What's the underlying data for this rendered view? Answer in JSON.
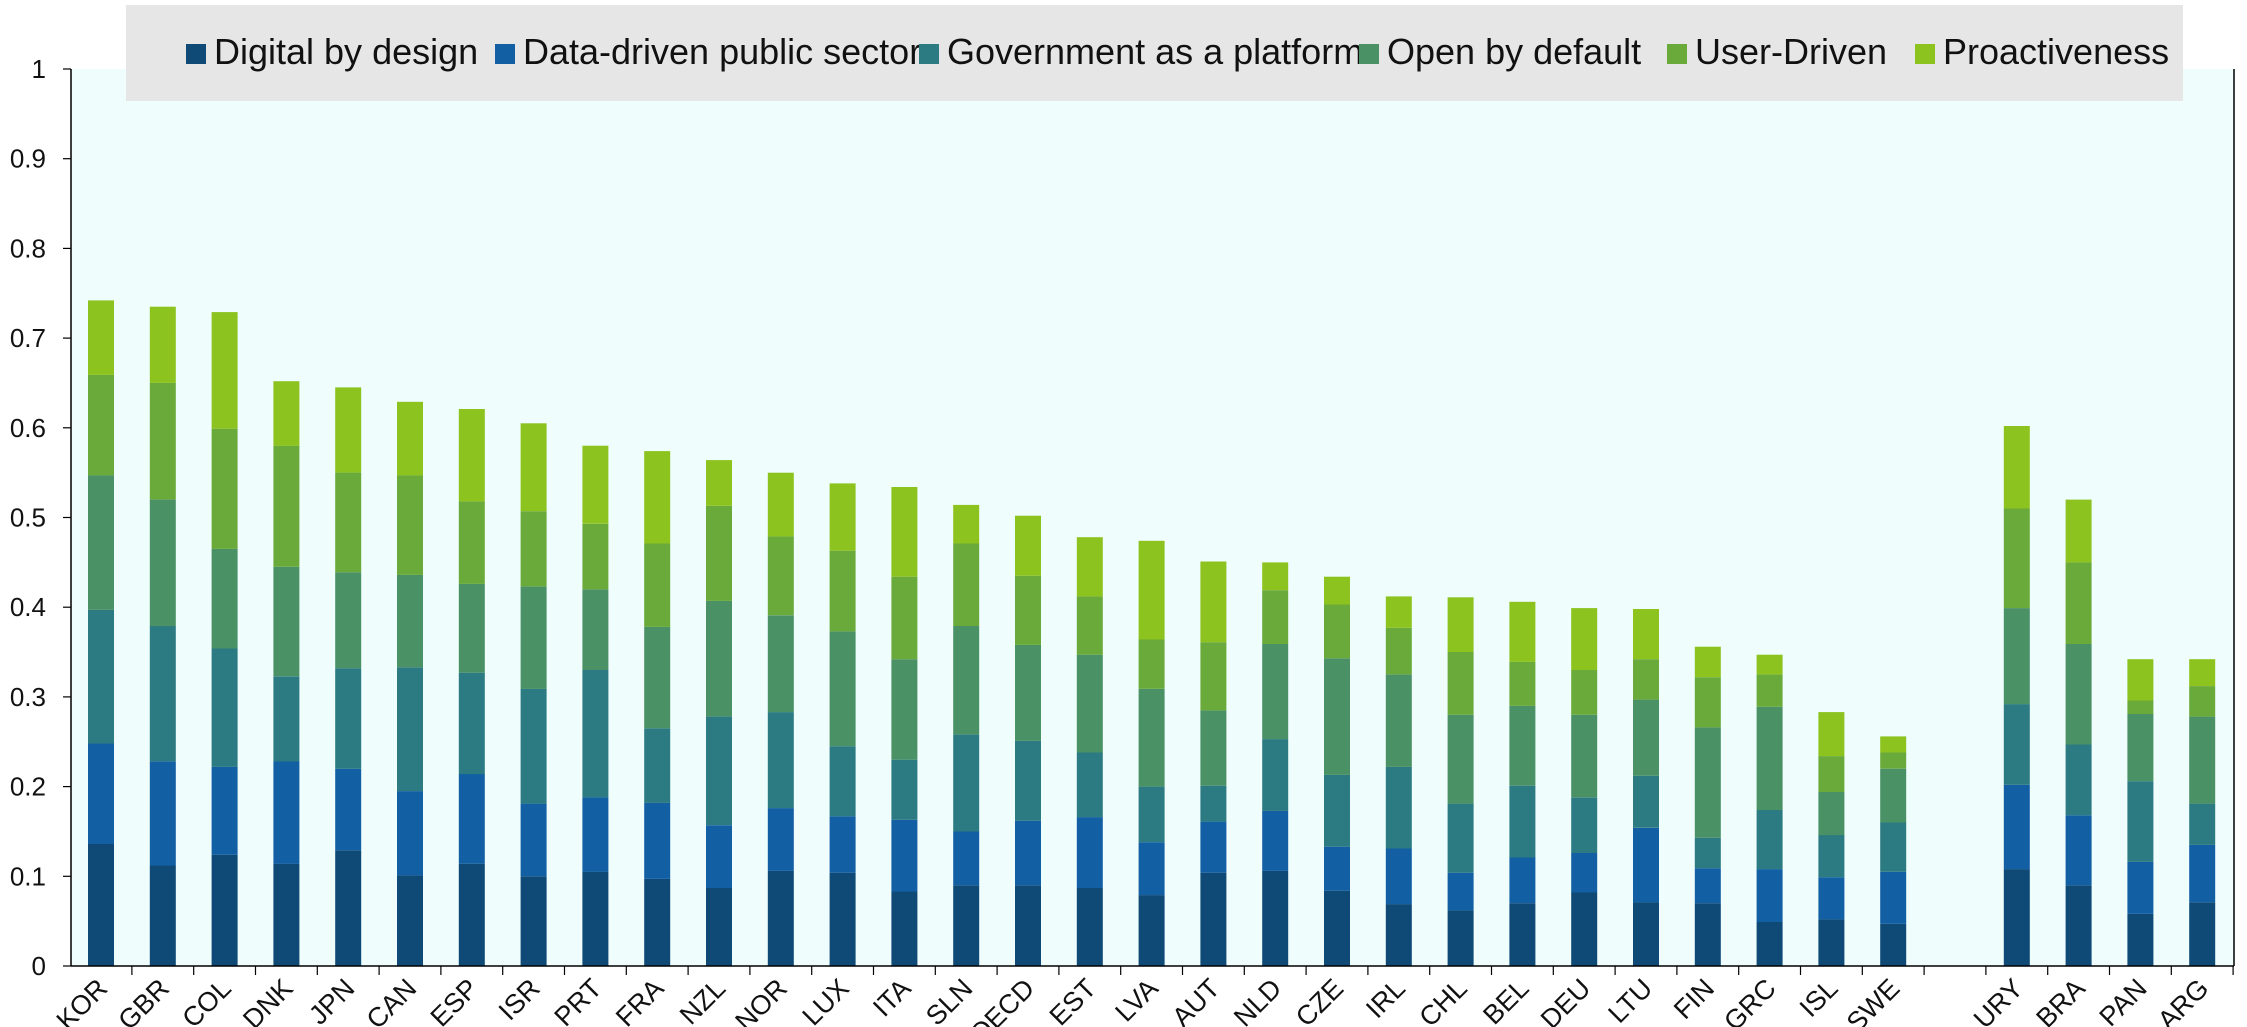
{
  "chart_data": {
    "type": "bar",
    "stacked": true,
    "title": "",
    "xlabel": "",
    "ylabel": "",
    "ylim": [
      0,
      1
    ],
    "yticks": [
      0,
      0.1,
      0.2,
      0.3,
      0.4,
      0.5,
      0.6,
      0.7,
      0.8,
      0.9,
      1
    ],
    "ytick_labels": [
      "0",
      "0.1",
      "0.2",
      "0.3",
      "0.4",
      "0.5",
      "0.6",
      "0.7",
      "0.8",
      "0.9",
      "1"
    ],
    "grid": false,
    "legend_position": "top",
    "plot_background": "#f0fdfd",
    "categories": [
      "KOR",
      "GBR",
      "COL",
      "DNK",
      "JPN",
      "CAN",
      "ESP",
      "ISR",
      "PRT",
      "FRA",
      "NZL",
      "NOR",
      "LUX",
      "ITA",
      "SLN",
      "OECD",
      "EST",
      "LVA",
      "AUT",
      "NLD",
      "CZE",
      "IRL",
      "CHL",
      "BEL",
      "DEU",
      "LTU",
      "FIN",
      "GRC",
      "ISL",
      "SWE",
      "",
      "URY",
      "BRA",
      "PAN",
      "ARG"
    ],
    "series": [
      {
        "name": "Digital by design",
        "color": "#0e4a75",
        "values": [
          0.136,
          0.112,
          0.124,
          0.114,
          0.129,
          0.101,
          0.114,
          0.1,
          0.105,
          0.097,
          0.087,
          0.106,
          0.104,
          0.083,
          0.09,
          0.09,
          0.087,
          0.079,
          0.104,
          0.106,
          0.084,
          0.069,
          0.062,
          0.07,
          0.082,
          0.071,
          0.07,
          0.049,
          0.052,
          0.047,
          null,
          0.108,
          0.09,
          0.058,
          0.071
        ]
      },
      {
        "name": "Data-driven public sector",
        "color": "#125fa3",
        "values": [
          0.112,
          0.116,
          0.098,
          0.114,
          0.091,
          0.094,
          0.1,
          0.081,
          0.083,
          0.085,
          0.07,
          0.07,
          0.063,
          0.08,
          0.06,
          0.072,
          0.079,
          0.059,
          0.057,
          0.067,
          0.049,
          0.062,
          0.042,
          0.051,
          0.044,
          0.083,
          0.039,
          0.059,
          0.047,
          0.058,
          null,
          0.094,
          0.078,
          0.058,
          0.064
        ]
      },
      {
        "name": "Government as a platform",
        "color": "#2c7b82",
        "values": [
          0.149,
          0.151,
          0.132,
          0.095,
          0.112,
          0.138,
          0.113,
          0.128,
          0.142,
          0.083,
          0.121,
          0.107,
          0.078,
          0.067,
          0.108,
          0.089,
          0.072,
          0.062,
          0.04,
          0.08,
          0.08,
          0.091,
          0.077,
          0.08,
          0.062,
          0.058,
          0.034,
          0.066,
          0.047,
          0.055,
          null,
          0.09,
          0.079,
          0.09,
          0.046
        ]
      },
      {
        "name": "Open by default",
        "color": "#4a9166",
        "values": [
          0.15,
          0.141,
          0.111,
          0.122,
          0.107,
          0.103,
          0.099,
          0.114,
          0.09,
          0.113,
          0.129,
          0.108,
          0.128,
          0.112,
          0.121,
          0.107,
          0.109,
          0.109,
          0.084,
          0.106,
          0.13,
          0.103,
          0.099,
          0.089,
          0.092,
          0.085,
          0.123,
          0.115,
          0.048,
          0.06,
          null,
          0.107,
          0.112,
          0.075,
          0.097
        ]
      },
      {
        "name": "User-Driven",
        "color": "#6aaa3a",
        "values": [
          0.112,
          0.13,
          0.134,
          0.135,
          0.111,
          0.111,
          0.092,
          0.084,
          0.073,
          0.093,
          0.106,
          0.088,
          0.09,
          0.092,
          0.092,
          0.077,
          0.065,
          0.055,
          0.076,
          0.06,
          0.06,
          0.052,
          0.07,
          0.049,
          0.05,
          0.045,
          0.056,
          0.036,
          0.04,
          0.018,
          null,
          0.111,
          0.091,
          0.015,
          0.034
        ]
      },
      {
        "name": "Proactiveness",
        "color": "#8cc31e",
        "values": [
          0.083,
          0.085,
          0.13,
          0.072,
          0.095,
          0.082,
          0.103,
          0.098,
          0.087,
          0.103,
          0.051,
          0.071,
          0.075,
          0.1,
          0.043,
          0.067,
          0.066,
          0.11,
          0.09,
          0.031,
          0.031,
          0.035,
          0.061,
          0.067,
          0.069,
          0.056,
          0.034,
          0.022,
          0.049,
          0.018,
          null,
          0.092,
          0.07,
          0.046,
          0.03
        ]
      }
    ]
  }
}
